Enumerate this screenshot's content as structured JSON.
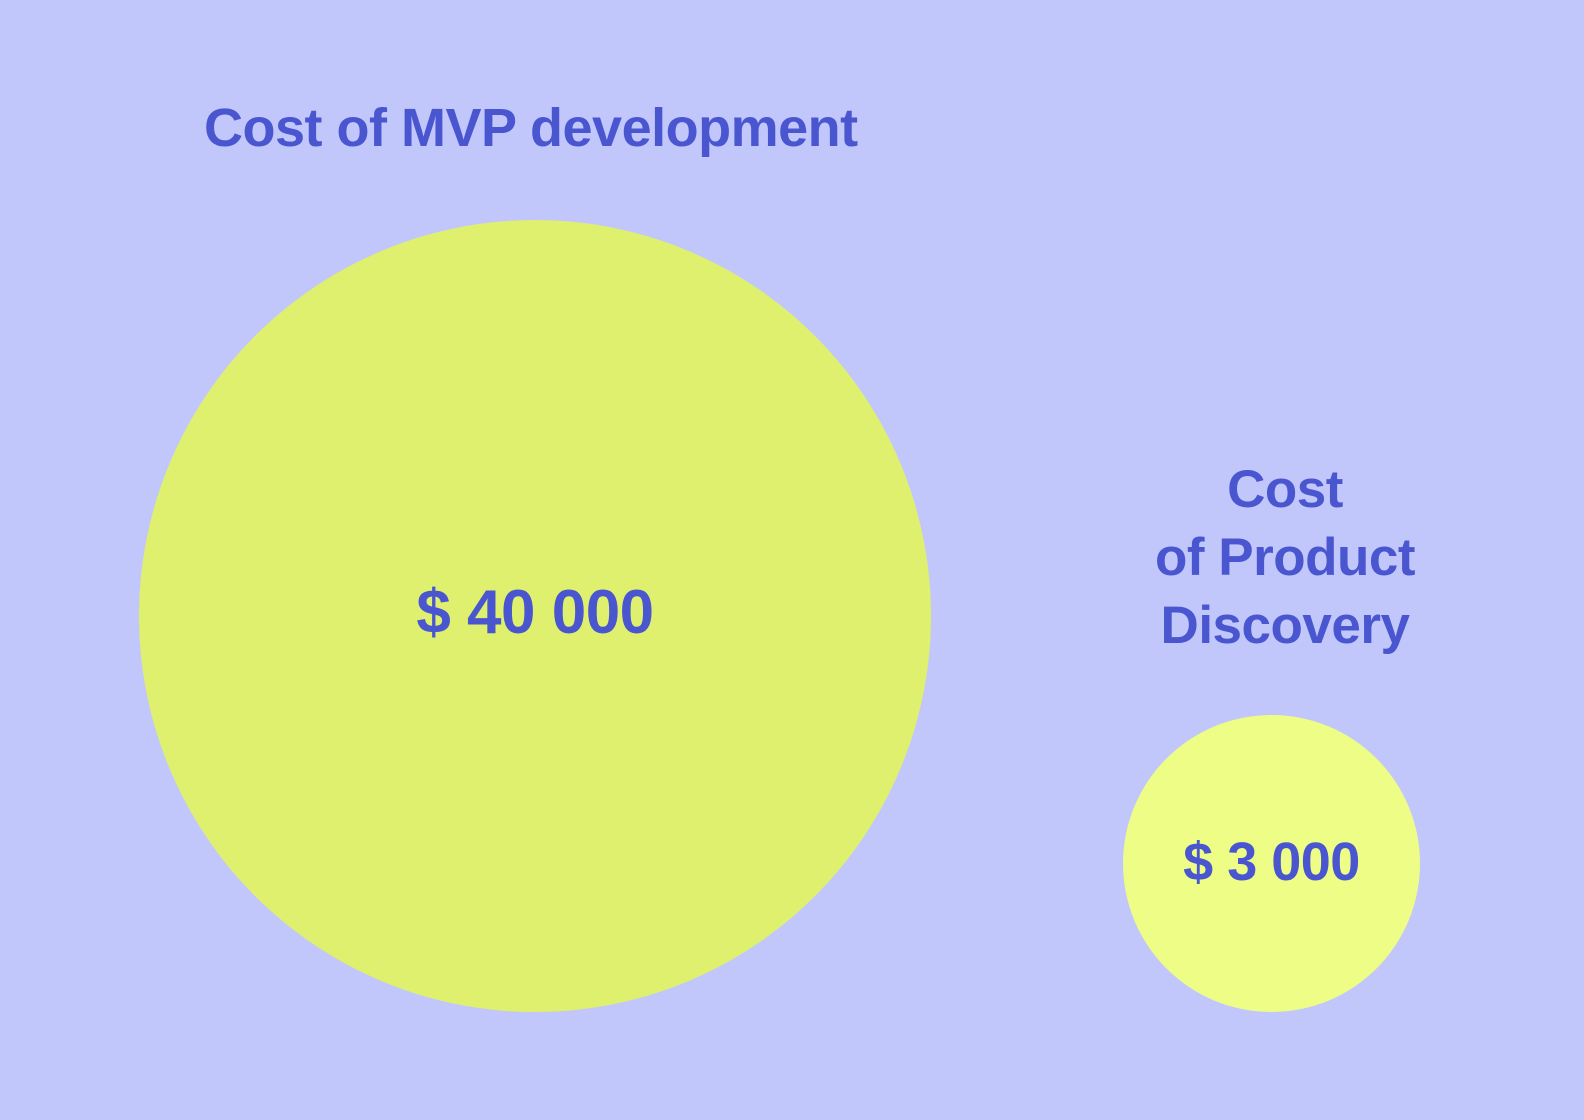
{
  "colors": {
    "background": "#c1c7fb",
    "text": "#4a56cf",
    "circle_mvp": "#dff06f",
    "circle_discovery": "#edfd86"
  },
  "mvp": {
    "title": "Cost of MVP development",
    "amount": "$ 40 000"
  },
  "discovery": {
    "title_lines": [
      "Cost",
      "of Product",
      "Discovery"
    ],
    "amount": "$ 3 000"
  }
}
